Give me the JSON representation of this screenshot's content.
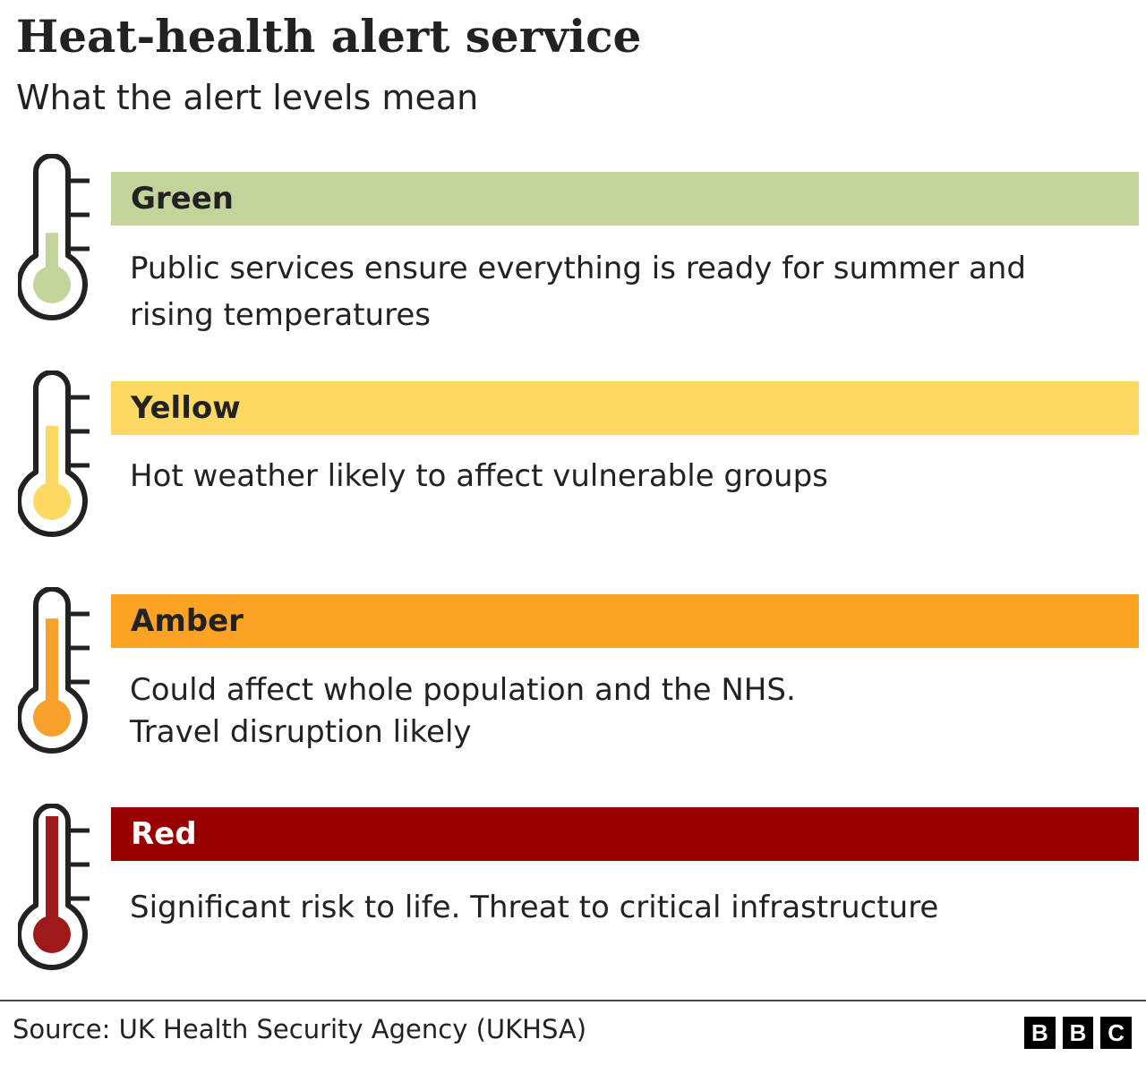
{
  "title": "Heat-health alert service",
  "subtitle": "What the alert levels mean",
  "levels": [
    {
      "name": "Green",
      "description": "Public services ensure everything is ready for summer and rising temperatures",
      "bar_color": "#c3d49a",
      "thermo_color": "#c3d49a",
      "fill_level": 0.3
    },
    {
      "name": "Yellow",
      "description": "Hot weather likely to affect vulnerable groups",
      "bar_color": "#fdd862",
      "thermo_color": "#fdd862",
      "fill_level": 0.55
    },
    {
      "name": "Amber",
      "description": "Could affect whole population and the NHS. Travel disruption likely",
      "bar_color": "#fda324",
      "thermo_color": "#f7a02c",
      "fill_level": 0.8
    },
    {
      "name": "Red",
      "description": "Significant risk to life. Threat to critical infrastructure",
      "bar_color": "#990000",
      "thermo_color": "#9e1a1a",
      "fill_level": 1.0
    }
  ],
  "footer": {
    "source": "Source: UK Health Security Agency (UKHSA)",
    "logo_letters": [
      "B",
      "B",
      "C"
    ]
  }
}
